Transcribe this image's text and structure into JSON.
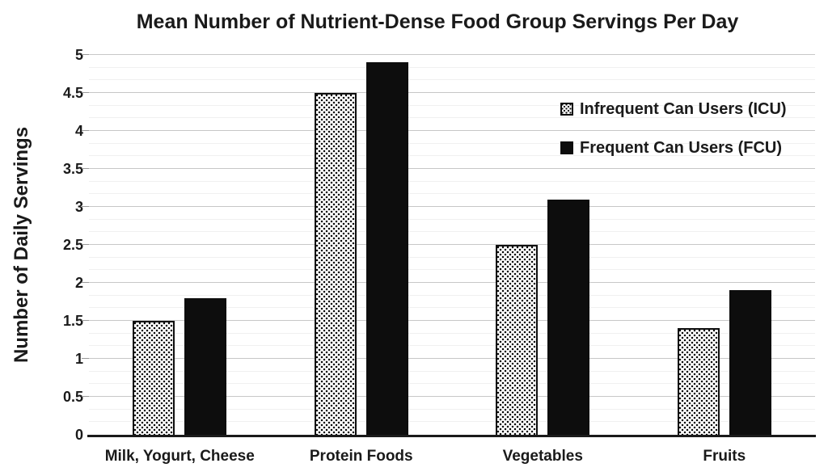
{
  "chart_data": {
    "type": "bar",
    "title": "Mean Number of Nutrient-Dense Food Group Servings Per Day",
    "ylabel": "Number of Daily Servings",
    "xlabel": "",
    "categories": [
      "Milk, Yogurt, Cheese",
      "Protein Foods",
      "Vegetables",
      "Fruits"
    ],
    "series": [
      {
        "name": "Infrequent Can Users (ICU)",
        "fill": "stipple",
        "values": [
          1.5,
          4.5,
          2.5,
          1.4
        ]
      },
      {
        "name": "Frequent Can Users (FCU)",
        "fill": "solid",
        "values": [
          1.8,
          4.9,
          3.1,
          1.9
        ]
      }
    ],
    "ylim": [
      0,
      5
    ],
    "ytick_step": 0.5,
    "ytick_labels": [
      "0",
      "0.5",
      "1",
      "1.5",
      "2",
      "2.5",
      "3",
      "3.5",
      "4",
      "4.5",
      "5"
    ],
    "minor_divisions_per_major": 3,
    "grid": true,
    "legend_position": "upper-right",
    "colors": {
      "bar_fill": "#0d0d0d",
      "grid_major": "#c7c7c7",
      "grid_minor": "#f0f0f0",
      "axis_line": "#1a1a1a",
      "text": "#1a1a1a",
      "background": "#ffffff"
    }
  }
}
